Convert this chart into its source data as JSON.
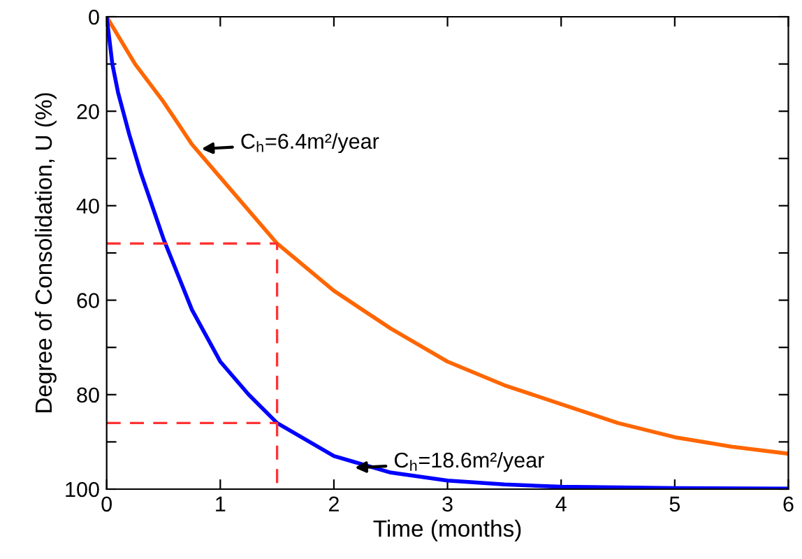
{
  "chart_data": {
    "type": "line",
    "xlabel": "Time (months)",
    "ylabel": "Degree of Consolidation, U (%)",
    "xlim": [
      0,
      6
    ],
    "xticks": [
      0,
      1,
      2,
      3,
      4,
      5,
      6
    ],
    "ylim": [
      100,
      0
    ],
    "yticks": [
      0,
      {
        "value": 10,
        "label": null
      },
      20,
      {
        "value": 30,
        "label": null
      },
      40,
      {
        "value": 50,
        "label": null
      },
      60,
      {
        "value": 70,
        "label": null
      },
      80,
      {
        "value": 90,
        "label": null
      },
      100
    ],
    "grid": false,
    "marker": "none",
    "line_style": "solid",
    "series": [
      {
        "color": "#ff6600",
        "x": [
          0,
          0.25,
          0.5,
          0.75,
          1,
          1.5,
          2,
          2.5,
          3,
          3.5,
          4,
          4.5,
          5,
          5.5,
          6
        ],
        "values": [
          0,
          10,
          18,
          27,
          34,
          48,
          58,
          66,
          73,
          78,
          82,
          86,
          89,
          91,
          92.5
        ]
      },
      {
        "color": "#0000ff",
        "x": [
          0,
          0.05,
          0.1,
          0.2,
          0.3,
          0.5,
          0.75,
          1,
          1.25,
          1.5,
          2,
          2.5,
          3,
          3.5,
          4,
          5,
          6
        ],
        "values": [
          0,
          10,
          16,
          25,
          33,
          47,
          62,
          73,
          80,
          86,
          93,
          96.5,
          98.2,
          99,
          99.5,
          99.8,
          99.9
        ]
      },
      {
        "color": "#ff3333",
        "line_style": "dashed",
        "x": [
          0,
          1.5,
          1.5
        ],
        "values": [
          48,
          48,
          100
        ]
      },
      {
        "color": "#ff3333",
        "line_style": "dashed",
        "x": [
          0,
          1.5
        ],
        "values": [
          86,
          86
        ]
      }
    ],
    "annotations": [
      {
        "text": "C$_{h}$=6.4m²/year",
        "x": 0.8,
        "y": 28
      },
      {
        "text": "C$_{h}$=18.6m²/year",
        "x": 2.15,
        "y": 95.5
      }
    ]
  }
}
